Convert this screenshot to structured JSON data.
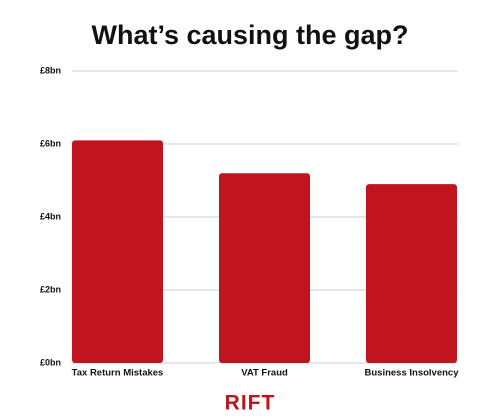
{
  "chart_data": {
    "type": "bar",
    "title": "What’s causing the gap?",
    "categories": [
      "Tax Return Mistakes",
      "VAT Fraud",
      "Business Insolvency"
    ],
    "values": [
      6.1,
      5.2,
      4.9
    ],
    "color": "#c0141f",
    "ylim": [
      0,
      8
    ],
    "yticks": [
      {
        "value": 0,
        "label": "£0bn"
      },
      {
        "value": 2,
        "label": "£2bn"
      },
      {
        "value": 4,
        "label": "£4bn"
      },
      {
        "value": 6,
        "label": "£6bn"
      },
      {
        "value": 8,
        "label": "£8bn"
      }
    ],
    "grid": true
  },
  "logo": "RIFT"
}
